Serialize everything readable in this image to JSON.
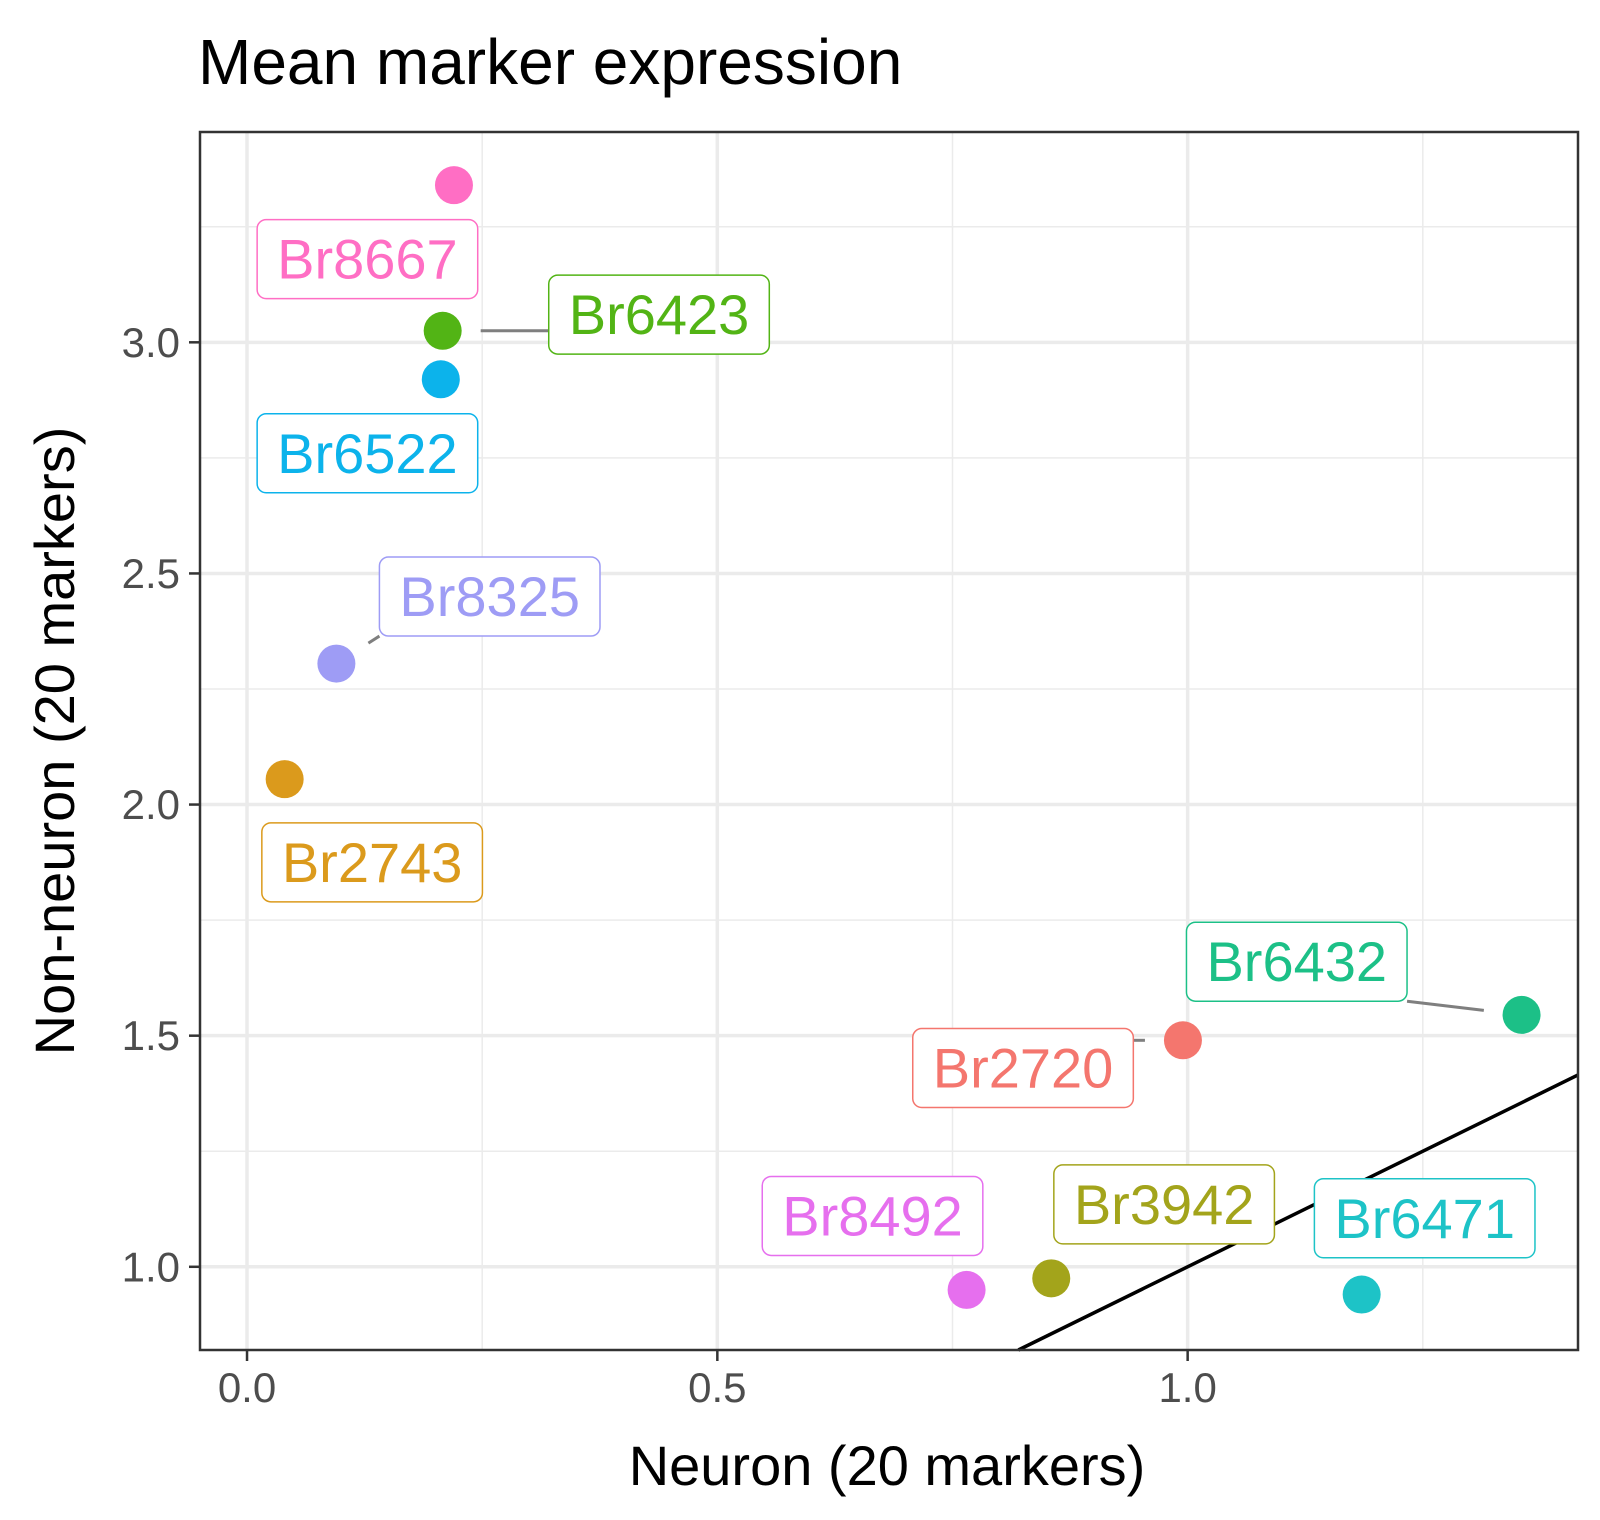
{
  "chart_data": {
    "type": "scatter",
    "title": "Mean marker expression",
    "xlabel": "Neuron (20 markers)",
    "ylabel": "Non-neuron (20 markers)",
    "xlim": [
      -0.05,
      1.415
    ],
    "ylim": [
      0.82,
      3.455
    ],
    "x_ticks": [
      0.0,
      0.5,
      1.0
    ],
    "x_tick_labels": [
      "0.0",
      "0.5",
      "1.0"
    ],
    "y_ticks": [
      1.0,
      1.5,
      2.0,
      2.5,
      3.0
    ],
    "y_tick_labels": [
      "1.0",
      "1.5",
      "2.0",
      "2.5",
      "3.0"
    ],
    "grid": true,
    "reference_line": {
      "slope": 1,
      "intercept": 0,
      "color": "#000000"
    },
    "points": [
      {
        "label": "Br8667",
        "x": 0.22,
        "y": 3.34,
        "color": "#FF6EC4",
        "label_anchor": [
          0.128,
          3.18
        ]
      },
      {
        "label": "Br6423",
        "x": 0.208,
        "y": 3.025,
        "color": "#52B415",
        "label_anchor": [
          0.438,
          3.06
        ]
      },
      {
        "label": "Br6522",
        "x": 0.206,
        "y": 2.92,
        "color": "#0CB3EB",
        "label_anchor": [
          0.128,
          2.76
        ]
      },
      {
        "label": "Br8325",
        "x": 0.095,
        "y": 2.305,
        "color": "#9E9CF5",
        "label_anchor": [
          0.258,
          2.45
        ]
      },
      {
        "label": "Br2743",
        "x": 0.04,
        "y": 2.055,
        "color": "#DB9A1C",
        "label_anchor": [
          0.133,
          1.875
        ]
      },
      {
        "label": "Br6432",
        "x": 1.355,
        "y": 1.545,
        "color": "#1CC087",
        "label_anchor": [
          1.116,
          1.66
        ]
      },
      {
        "label": "Br2720",
        "x": 0.995,
        "y": 1.49,
        "color": "#F4766E",
        "label_anchor": [
          0.825,
          1.43
        ]
      },
      {
        "label": "Br8492",
        "x": 0.765,
        "y": 0.95,
        "color": "#E66FEE",
        "label_anchor": [
          0.665,
          1.11
        ]
      },
      {
        "label": "Br3942",
        "x": 0.855,
        "y": 0.975,
        "color": "#A3A41B",
        "label_anchor": [
          0.975,
          1.135
        ]
      },
      {
        "label": "Br6471",
        "x": 1.185,
        "y": 0.94,
        "color": "#1DC3C7",
        "label_anchor": [
          1.252,
          1.105
        ]
      }
    ]
  }
}
